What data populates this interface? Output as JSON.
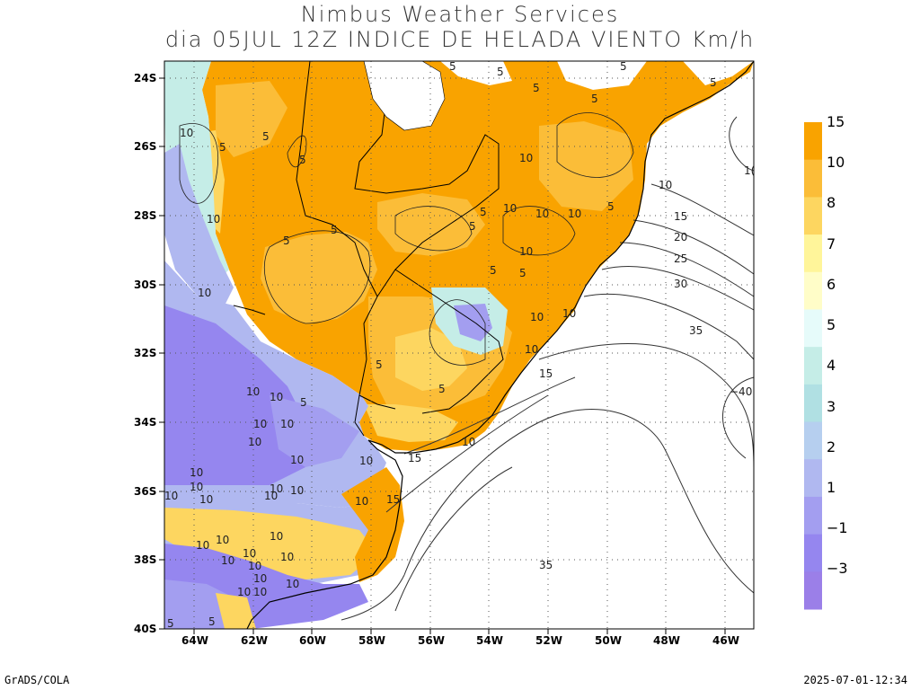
{
  "header": {
    "line1": "Nimbus Weather Services",
    "line2": "dia 05JUL 12Z INDICE DE HELADA VIENTO Km/h"
  },
  "footer": {
    "left": "GrADS/COLA",
    "right": "2025-07-01-12:34"
  },
  "map": {
    "lat_labels": [
      "24S",
      "26S",
      "28S",
      "30S",
      "32S",
      "34S",
      "36S",
      "38S",
      "40S"
    ],
    "lon_labels": [
      "64W",
      "62W",
      "60W",
      "58W",
      "56W",
      "54W",
      "52W",
      "50W",
      "48W",
      "46W"
    ],
    "lat_extent": [
      -40,
      -23.5
    ],
    "lon_extent": [
      -65,
      -45
    ]
  },
  "colorbar": {
    "labels": [
      "15",
      "10",
      "8",
      "7",
      "6",
      "5",
      "4",
      "3",
      "2",
      "1",
      "−1",
      "−3"
    ],
    "colors": [
      "#f9a300",
      "#fbbd38",
      "#fdd660",
      "#fff59a",
      "#fffdc8",
      "#e6fbfa",
      "#c5ede7",
      "#b0e0e3",
      "#b6cfef",
      "#b0b8f0",
      "#a39ef0",
      "#9586ef",
      "#9b7fe8"
    ]
  },
  "wind_contours": {
    "labels": [
      "5",
      "10",
      "15",
      "20",
      "25",
      "30",
      "35",
      "40"
    ],
    "on_map": [
      "5",
      "10",
      "15",
      "20",
      "25",
      "30",
      "35",
      "−40",
      "1("
    ]
  }
}
